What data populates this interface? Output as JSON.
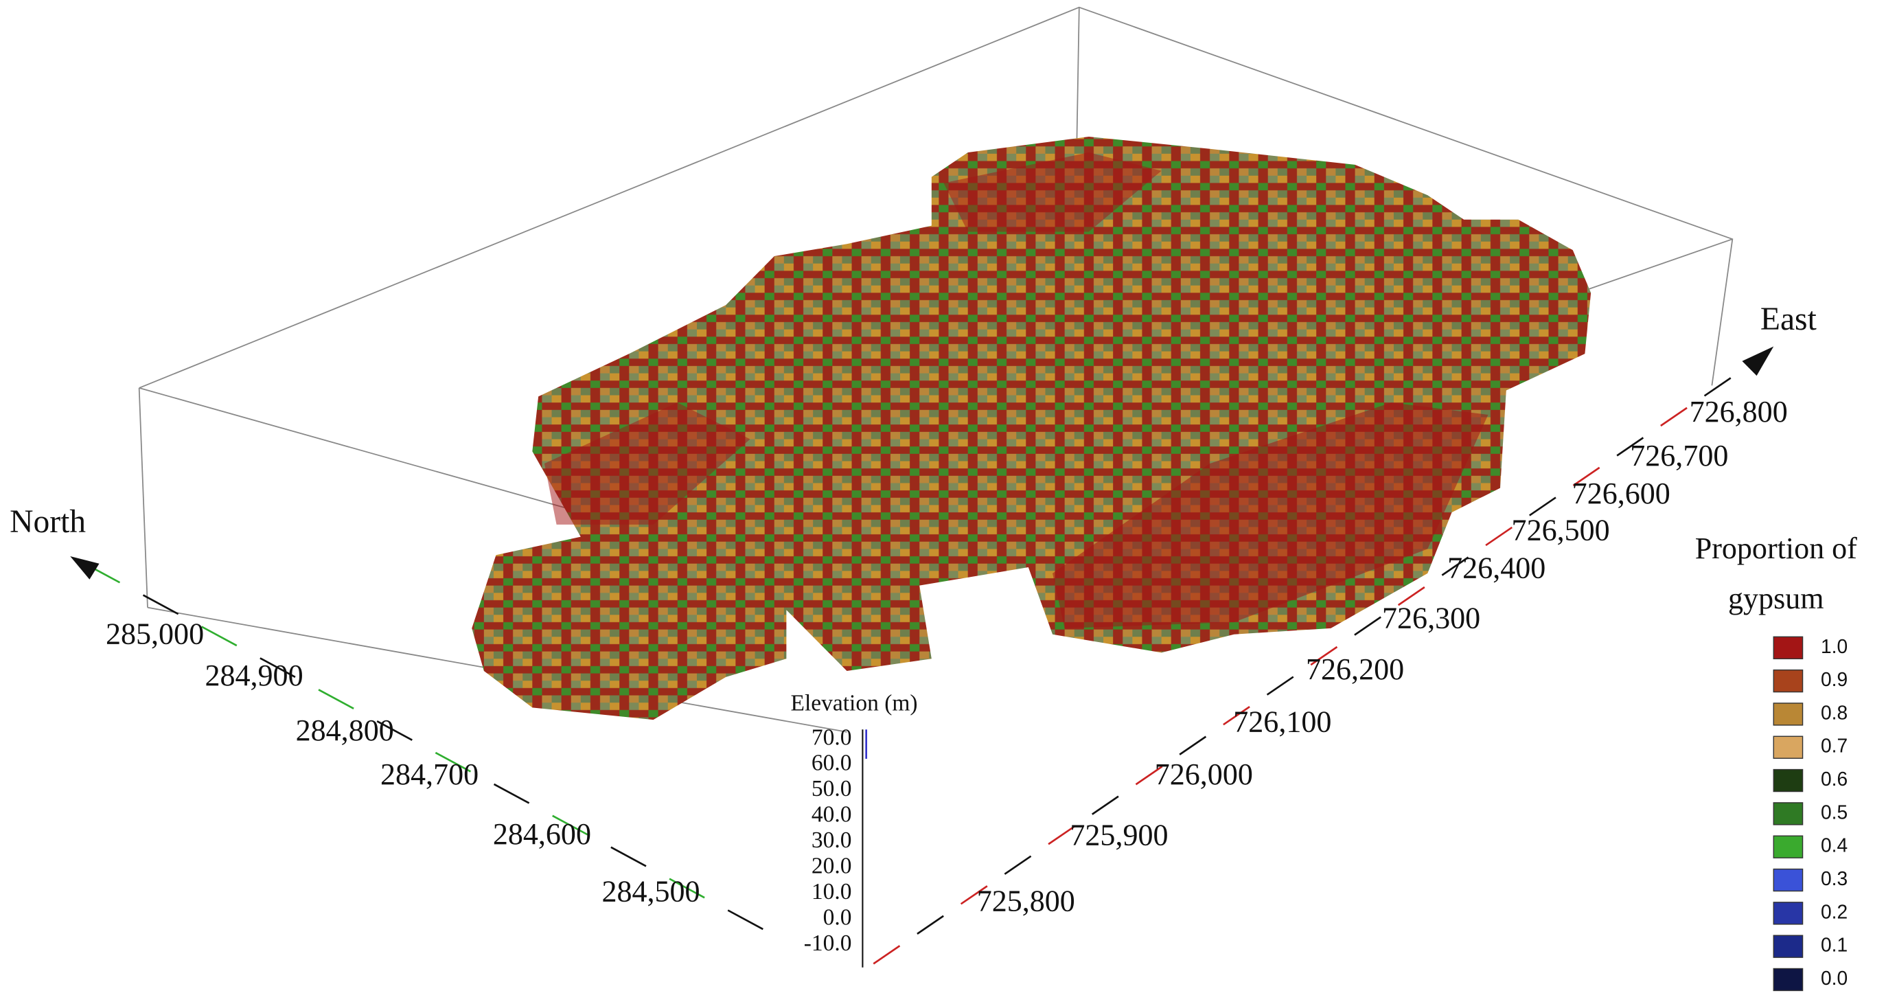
{
  "north_axis": {
    "label": "North",
    "ticks": [
      "285,000",
      "284,900",
      "284,800",
      "284,700",
      "284,600",
      "284,500"
    ]
  },
  "east_axis": {
    "label": "East",
    "ticks": [
      "726,800",
      "726,700",
      "726,600",
      "726,500",
      "726,400",
      "726,300",
      "726,200",
      "726,100",
      "726,000",
      "725,900",
      "725,800"
    ]
  },
  "elevation_axis": {
    "label": "Elevation (m)",
    "ticks": [
      "70.0",
      "60.0",
      "50.0",
      "40.0",
      "30.0",
      "20.0",
      "10.0",
      "0.0",
      "-10.0"
    ]
  },
  "legend": {
    "title": [
      "Proportion of",
      "gypsum"
    ],
    "items": [
      {
        "label": "1.0",
        "color": "#a31515"
      },
      {
        "label": "0.9",
        "color": "#a8431c"
      },
      {
        "label": "0.8",
        "color": "#b98735"
      },
      {
        "label": "0.7",
        "color": "#d9a660"
      },
      {
        "label": "0.6",
        "color": "#1e3d12"
      },
      {
        "label": "0.5",
        "color": "#2f7a24"
      },
      {
        "label": "0.4",
        "color": "#3aaa2e"
      },
      {
        "label": "0.3",
        "color": "#3a52d8"
      },
      {
        "label": "0.2",
        "color": "#2836a6"
      },
      {
        "label": "0.1",
        "color": "#1c2a8a"
      },
      {
        "label": "0.0",
        "color": "#0e1544"
      }
    ]
  }
}
